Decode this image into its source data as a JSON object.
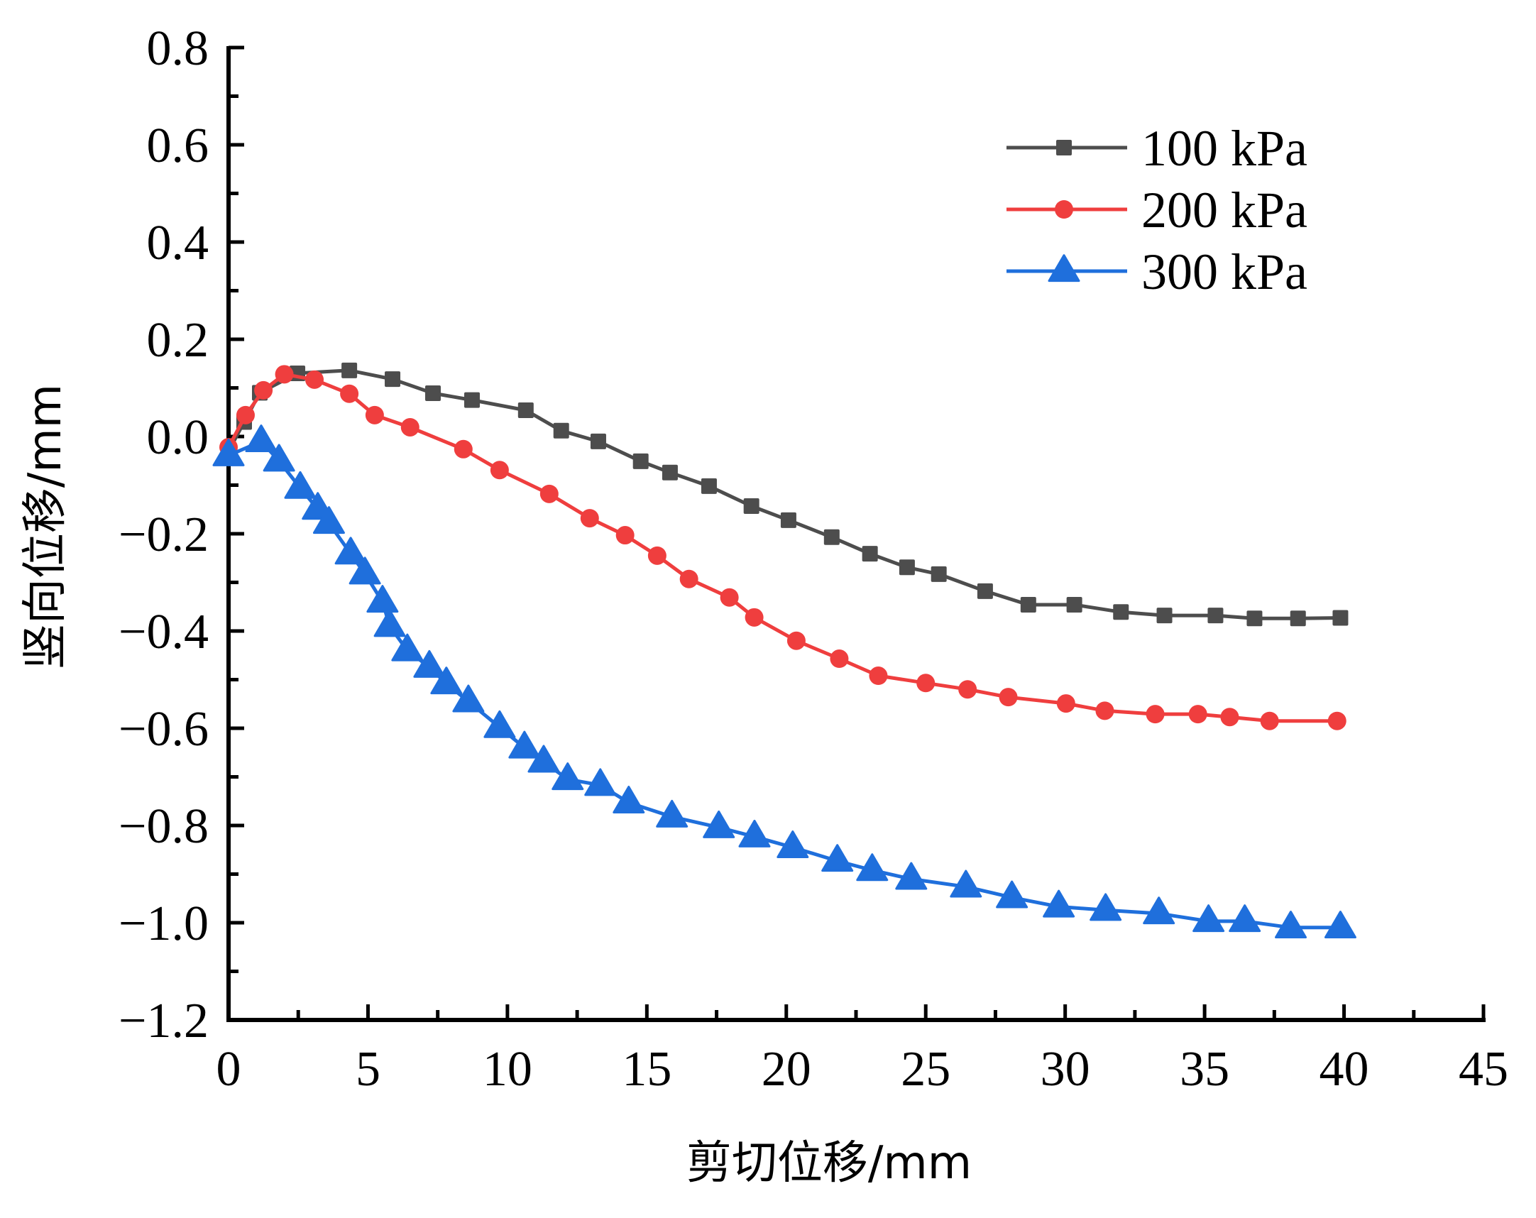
{
  "chart_data": {
    "type": "line",
    "title": "",
    "xlabel": "剪切位移/mm",
    "ylabel": "竖向位移/mm",
    "xlim": [
      0,
      45
    ],
    "ylim": [
      -1.2,
      0.8
    ],
    "xticks": [
      0,
      5,
      10,
      15,
      20,
      25,
      30,
      35,
      40,
      45
    ],
    "xtick_labels": [
      "0",
      "5",
      "10",
      "15",
      "20",
      "25",
      "30",
      "35",
      "40",
      "45"
    ],
    "yticks": [
      0.8,
      0.6,
      0.4,
      0.2,
      0.0,
      -0.2,
      -0.4,
      -0.6,
      -0.8,
      -1.0,
      -1.2
    ],
    "ytick_labels": [
      "0.8",
      "0.6",
      "0.4",
      "0.2",
      "0.0",
      "−0.2",
      "−0.4",
      "−0.6",
      "−0.8",
      "−1.0",
      "−1.2"
    ],
    "grid": false,
    "legend_position": "top-right",
    "series": [
      {
        "name": "100 kPa",
        "color": "#4d4d4d",
        "marker": "square",
        "points": [
          [
            0,
            -0.03
          ],
          [
            0.56,
            0.03
          ],
          [
            1.12,
            0.09
          ],
          [
            2.47,
            0.13
          ],
          [
            4.33,
            0.136
          ],
          [
            5.88,
            0.118
          ],
          [
            7.33,
            0.089
          ],
          [
            8.73,
            0.075
          ],
          [
            10.66,
            0.054
          ],
          [
            11.93,
            0.012
          ],
          [
            13.26,
            -0.01
          ],
          [
            14.78,
            -0.051
          ],
          [
            15.83,
            -0.074
          ],
          [
            17.23,
            -0.102
          ],
          [
            18.75,
            -0.143
          ],
          [
            20.08,
            -0.172
          ],
          [
            21.63,
            -0.207
          ],
          [
            23.0,
            -0.241
          ],
          [
            24.33,
            -0.269
          ],
          [
            25.47,
            -0.283
          ],
          [
            27.13,
            -0.318
          ],
          [
            28.68,
            -0.346
          ],
          [
            30.33,
            -0.346
          ],
          [
            32.0,
            -0.361
          ],
          [
            33.56,
            -0.368
          ],
          [
            35.39,
            -0.368
          ],
          [
            36.79,
            -0.374
          ],
          [
            38.35,
            -0.374
          ],
          [
            39.87,
            -0.373
          ]
        ]
      },
      {
        "name": "200 kPa",
        "color": "#ef3e3e",
        "marker": "circle",
        "points": [
          [
            0,
            -0.022
          ],
          [
            0.61,
            0.044
          ],
          [
            1.25,
            0.095
          ],
          [
            2.0,
            0.128
          ],
          [
            3.08,
            0.117
          ],
          [
            4.33,
            0.088
          ],
          [
            5.24,
            0.044
          ],
          [
            6.51,
            0.019
          ],
          [
            8.42,
            -0.026
          ],
          [
            9.72,
            -0.069
          ],
          [
            11.5,
            -0.118
          ],
          [
            12.95,
            -0.168
          ],
          [
            14.22,
            -0.203
          ],
          [
            15.37,
            -0.245
          ],
          [
            16.51,
            -0.293
          ],
          [
            17.96,
            -0.331
          ],
          [
            18.85,
            -0.372
          ],
          [
            20.36,
            -0.42
          ],
          [
            21.9,
            -0.457
          ],
          [
            23.3,
            -0.492
          ],
          [
            25.0,
            -0.507
          ],
          [
            26.5,
            -0.52
          ],
          [
            27.96,
            -0.536
          ],
          [
            30.03,
            -0.549
          ],
          [
            31.42,
            -0.564
          ],
          [
            33.23,
            -0.571
          ],
          [
            34.76,
            -0.571
          ],
          [
            35.9,
            -0.577
          ],
          [
            37.33,
            -0.585
          ],
          [
            39.75,
            -0.585
          ]
        ]
      },
      {
        "name": "300 kPa",
        "color": "#1f6fdc",
        "marker": "triangle",
        "points": [
          [
            0,
            -0.039
          ],
          [
            1.17,
            -0.01
          ],
          [
            1.81,
            -0.05
          ],
          [
            2.57,
            -0.106
          ],
          [
            3.2,
            -0.149
          ],
          [
            3.6,
            -0.178
          ],
          [
            4.38,
            -0.241
          ],
          [
            4.89,
            -0.282
          ],
          [
            5.52,
            -0.34
          ],
          [
            5.78,
            -0.39
          ],
          [
            6.41,
            -0.44
          ],
          [
            7.2,
            -0.474
          ],
          [
            7.81,
            -0.508
          ],
          [
            8.6,
            -0.545
          ],
          [
            9.72,
            -0.598
          ],
          [
            10.61,
            -0.64
          ],
          [
            11.3,
            -0.669
          ],
          [
            12.16,
            -0.705
          ],
          [
            13.33,
            -0.717
          ],
          [
            14.35,
            -0.753
          ],
          [
            15.9,
            -0.782
          ],
          [
            17.58,
            -0.804
          ],
          [
            18.86,
            -0.823
          ],
          [
            20.23,
            -0.845
          ],
          [
            21.83,
            -0.873
          ],
          [
            23.08,
            -0.892
          ],
          [
            24.48,
            -0.91
          ],
          [
            26.44,
            -0.926
          ],
          [
            28.09,
            -0.948
          ],
          [
            29.77,
            -0.967
          ],
          [
            31.45,
            -0.974
          ],
          [
            33.36,
            -0.981
          ],
          [
            35.14,
            -0.997
          ],
          [
            36.44,
            -0.997
          ],
          [
            38.09,
            -1.01
          ],
          [
            39.87,
            -1.01
          ]
        ]
      }
    ]
  }
}
